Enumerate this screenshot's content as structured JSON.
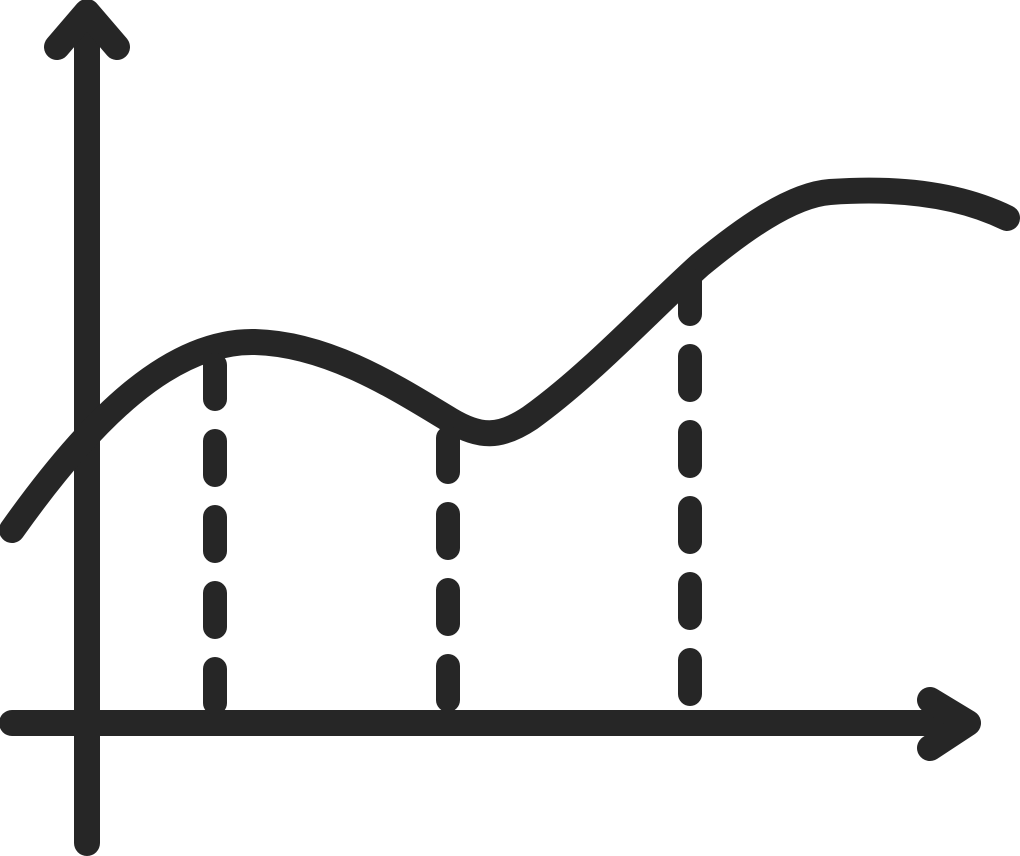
{
  "diagram": {
    "style": "line-icon",
    "stroke_color": "#262626",
    "background_color": "#ffffff",
    "elements": [
      "y-axis-arrow",
      "x-axis-arrow",
      "wavy-curve",
      "dashed-drop-line",
      "dashed-drop-line",
      "dashed-drop-line"
    ]
  }
}
